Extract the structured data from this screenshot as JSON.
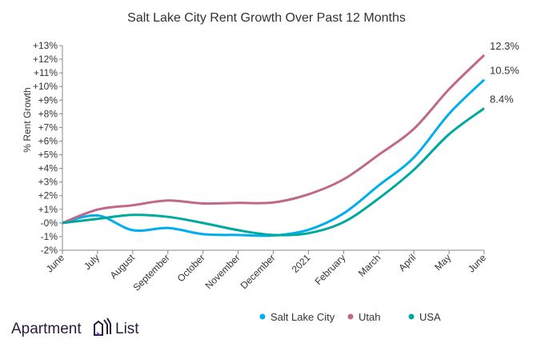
{
  "chart_data": {
    "type": "line",
    "title": "Salt Lake City Rent Growth Over Past 12 Months",
    "ylabel": "% Rent Growth",
    "xlabel": "",
    "categories": [
      "June",
      "July",
      "August",
      "September",
      "October",
      "November",
      "December",
      "2021",
      "February",
      "March",
      "April",
      "May",
      "June"
    ],
    "y_ticks": [
      "+13%",
      "+12%",
      "+11%",
      "+10%",
      "+9%",
      "+8%",
      "+7%",
      "+6%",
      "+5%",
      "+4%",
      "+3%",
      "+2%",
      "+1%",
      "-0%",
      "-1%",
      "-2%"
    ],
    "ylim": [
      -2,
      13
    ],
    "grid": false,
    "legend_placement": "bottom-right",
    "series": [
      {
        "name": "Salt Lake City",
        "color": "#00aeef",
        "values": [
          0,
          0.55,
          -0.53,
          -0.37,
          -0.82,
          -0.88,
          -0.92,
          -0.5,
          0.7,
          2.75,
          4.8,
          8.0,
          10.5
        ],
        "end_label": "10.5%"
      },
      {
        "name": "Utah",
        "color": "#c0688a",
        "values": [
          0,
          0.98,
          1.3,
          1.65,
          1.43,
          1.47,
          1.5,
          2.1,
          3.2,
          5.0,
          6.9,
          9.8,
          12.3
        ],
        "end_label": "12.3%"
      },
      {
        "name": "USA",
        "color": "#00a99d",
        "values": [
          0,
          0.3,
          0.59,
          0.45,
          0,
          -0.53,
          -0.88,
          -0.75,
          0.06,
          1.8,
          3.9,
          6.5,
          8.4
        ],
        "end_label": "8.4%"
      }
    ]
  },
  "logo": {
    "text_left": "Apartment",
    "text_right": "List",
    "color": "#2b1a3d",
    "accent": "#7b3fe4"
  }
}
